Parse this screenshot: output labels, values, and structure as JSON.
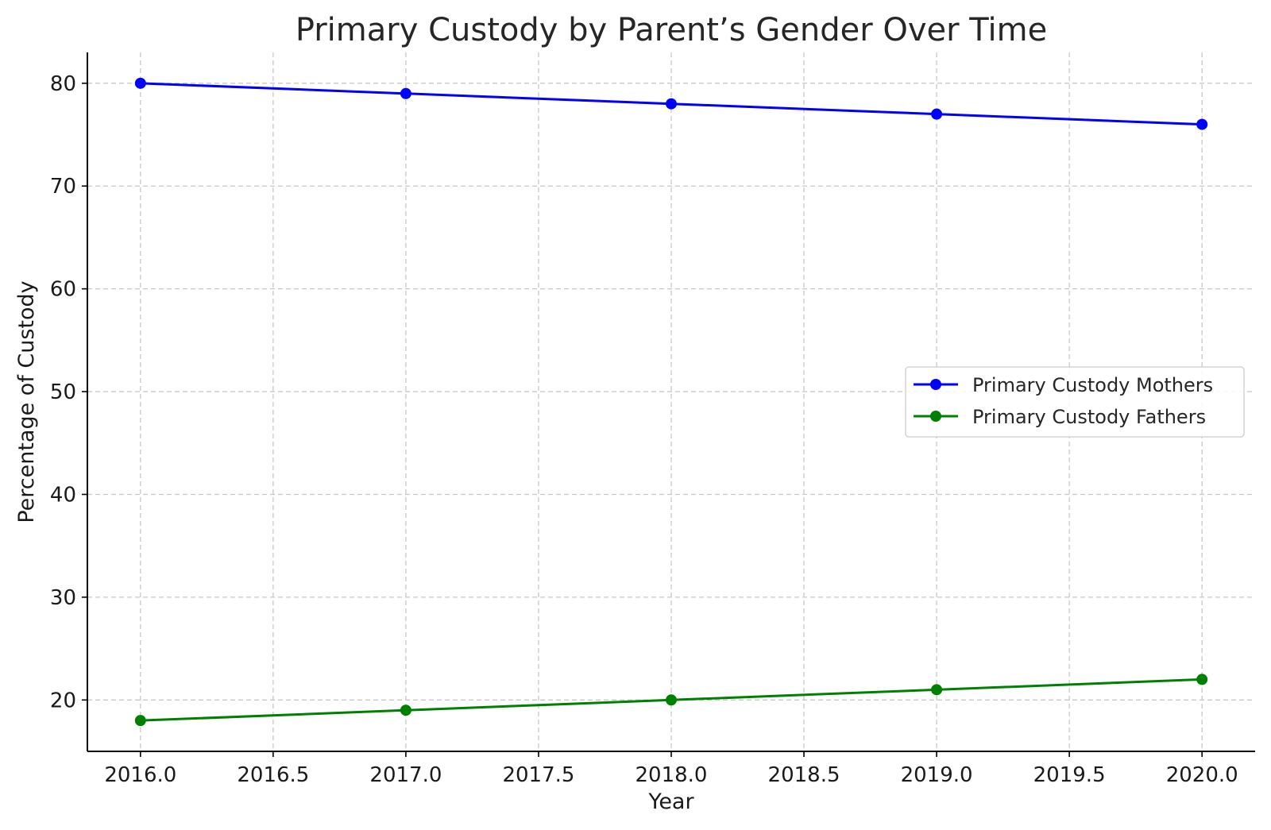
{
  "chart_data": {
    "type": "line",
    "title": "Primary Custody by Parent’s Gender Over Time",
    "xlabel": "Year",
    "ylabel": "Percentage of Custody",
    "x": [
      2016,
      2017,
      2018,
      2019,
      2020
    ],
    "xlim": [
      2015.8,
      2020.2
    ],
    "ylim": [
      15,
      83
    ],
    "xticks": [
      2016.0,
      2016.5,
      2017.0,
      2017.5,
      2018.0,
      2018.5,
      2019.0,
      2019.5,
      2020.0
    ],
    "xtick_labels": [
      "2016.0",
      "2016.5",
      "2017.0",
      "2017.5",
      "2018.0",
      "2018.5",
      "2019.0",
      "2019.5",
      "2020.0"
    ],
    "yticks": [
      20,
      30,
      40,
      50,
      60,
      70,
      80
    ],
    "ytick_labels": [
      "20",
      "30",
      "40",
      "50",
      "60",
      "70",
      "80"
    ],
    "grid": true,
    "legend_position": "center-right",
    "series": [
      {
        "name": "Primary Custody Mothers",
        "values": [
          80,
          79,
          78,
          77,
          76
        ],
        "color": "#0000ff",
        "marker": "circle"
      },
      {
        "name": "Primary Custody Fathers",
        "values": [
          18,
          19,
          20,
          21,
          22
        ],
        "color": "#008000",
        "marker": "circle"
      }
    ]
  }
}
